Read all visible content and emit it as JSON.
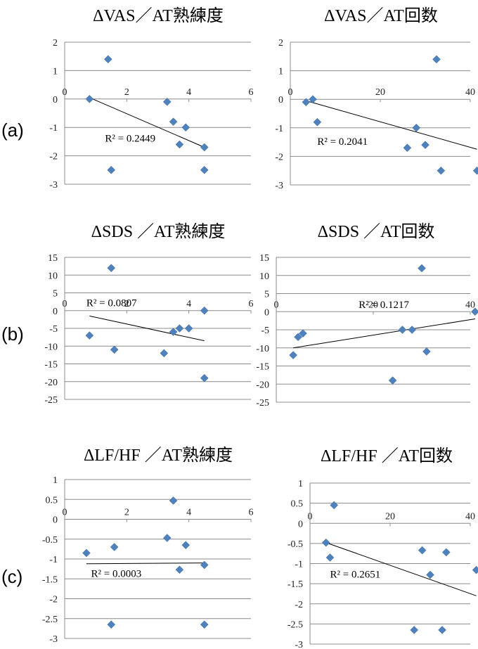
{
  "row_labels": [
    "(a)",
    "(b)",
    "(c)"
  ],
  "chart_data": [
    {
      "type": "scatter",
      "title": "ΔVAS／AT熟練度",
      "xlim": [
        0,
        6
      ],
      "ylim": [
        -3,
        2
      ],
      "x_ticks": [
        0,
        2,
        4,
        6
      ],
      "y_ticks": [
        2,
        1,
        0,
        -1,
        -2,
        -3
      ],
      "points": [
        [
          0.8,
          0
        ],
        [
          1.4,
          1.4
        ],
        [
          1.5,
          -2.5
        ],
        [
          3.3,
          -0.1
        ],
        [
          3.5,
          -0.8
        ],
        [
          3.7,
          -1.6
        ],
        [
          3.9,
          -1.0
        ],
        [
          4.5,
          -1.7
        ],
        [
          4.5,
          -2.5
        ]
      ],
      "trendline": [
        [
          0.8,
          0.05
        ],
        [
          4.5,
          -1.7
        ]
      ],
      "r2_label": "R² = 0.2449",
      "r2_anchor": [
        1.3,
        -1.5
      ]
    },
    {
      "type": "scatter",
      "title": "ΔVAS／AT回数",
      "xlim": [
        0,
        40
      ],
      "ylim": [
        -3,
        2
      ],
      "x_ticks": [
        0,
        20,
        40
      ],
      "y_ticks": [
        2,
        1,
        0,
        -1,
        -2,
        -3
      ],
      "points": [
        [
          3.5,
          -0.1
        ],
        [
          5,
          0
        ],
        [
          6,
          -0.8
        ],
        [
          26,
          -1.7
        ],
        [
          28,
          -1.0
        ],
        [
          30,
          -1.6
        ],
        [
          32.5,
          1.4
        ],
        [
          33.5,
          -2.5
        ],
        [
          41.5,
          -2.5
        ]
      ],
      "trendline": [
        [
          3.5,
          -0.05
        ],
        [
          41.5,
          -1.75
        ]
      ],
      "r2_label": "R² = 0.2041",
      "r2_anchor": [
        6,
        -1.6
      ]
    },
    {
      "type": "scatter",
      "title": "ΔSDS ／AT熟練度",
      "xlim": [
        0,
        6
      ],
      "ylim": [
        -25,
        15
      ],
      "x_ticks": [
        0,
        2,
        4,
        6
      ],
      "y_ticks": [
        15,
        10,
        5,
        0,
        -5,
        -10,
        -15,
        -20,
        -25
      ],
      "points": [
        [
          0.8,
          -7
        ],
        [
          1.5,
          12
        ],
        [
          1.6,
          -11
        ],
        [
          3.2,
          -12
        ],
        [
          3.5,
          -6
        ],
        [
          3.7,
          -5
        ],
        [
          4.0,
          -5
        ],
        [
          4.5,
          0
        ],
        [
          4.5,
          -19
        ]
      ],
      "trendline": [
        [
          0.8,
          -1.5
        ],
        [
          4.5,
          -8.5
        ]
      ],
      "r2_label": "R² = 0.0807",
      "r2_anchor": [
        0.7,
        1.2
      ]
    },
    {
      "type": "scatter",
      "title": "ΔSDS ／AT回数",
      "xlim": [
        0,
        40
      ],
      "ylim": [
        -25,
        15
      ],
      "x_ticks": [
        0,
        20,
        40
      ],
      "y_ticks": [
        15,
        10,
        5,
        0,
        -5,
        -10,
        -15,
        -20,
        -25
      ],
      "points": [
        [
          3.5,
          -12
        ],
        [
          4.5,
          -7
        ],
        [
          5.5,
          -6
        ],
        [
          24,
          -19
        ],
        [
          26,
          -5
        ],
        [
          28,
          -5
        ],
        [
          30,
          12
        ],
        [
          31,
          -11
        ],
        [
          41,
          0
        ]
      ],
      "trendline": [
        [
          3.5,
          -10
        ],
        [
          41,
          -2
        ]
      ],
      "r2_label": "R² = 0.1217",
      "r2_anchor": [
        17,
        1
      ]
    },
    {
      "type": "scatter",
      "title": "ΔLF/HF ／AT熟練度",
      "xlim": [
        0,
        6
      ],
      "ylim": [
        -3,
        1
      ],
      "x_ticks": [
        0,
        2,
        4,
        6
      ],
      "y_ticks": [
        1,
        0.5,
        0,
        -0.5,
        -1,
        -1.5,
        -2,
        -2.5,
        -3
      ],
      "points": [
        [
          0.7,
          -0.85
        ],
        [
          1.5,
          -2.65
        ],
        [
          1.6,
          -0.7
        ],
        [
          3.3,
          -0.47
        ],
        [
          3.5,
          0.47
        ],
        [
          3.7,
          -1.27
        ],
        [
          3.9,
          -0.65
        ],
        [
          4.5,
          -1.15
        ],
        [
          4.5,
          -2.65
        ]
      ],
      "trendline": [
        [
          0.7,
          -1.12
        ],
        [
          4.5,
          -1.1
        ]
      ],
      "r2_label": "R² = 0.0003",
      "r2_anchor": [
        0.85,
        -1.45
      ]
    },
    {
      "type": "scatter",
      "title": "ΔLF/HF ／AT回数",
      "xlim": [
        0,
        40
      ],
      "ylim": [
        -3,
        1
      ],
      "x_ticks": [
        0,
        20,
        40
      ],
      "y_ticks": [
        1,
        0.5,
        0,
        -0.5,
        -1,
        -1.5,
        -2,
        -2.5,
        -3
      ],
      "points": [
        [
          4,
          -0.48
        ],
        [
          5,
          -0.85
        ],
        [
          6,
          0.45
        ],
        [
          26,
          -2.65
        ],
        [
          28,
          -0.67
        ],
        [
          30,
          -1.28
        ],
        [
          33,
          -2.65
        ],
        [
          34,
          -0.72
        ],
        [
          41.5,
          -1.16
        ]
      ],
      "trendline": [
        [
          4,
          -0.48
        ],
        [
          41.5,
          -1.8
        ]
      ],
      "r2_label": "R² = 0.2651",
      "r2_anchor": [
        5,
        -1.35
      ]
    }
  ]
}
